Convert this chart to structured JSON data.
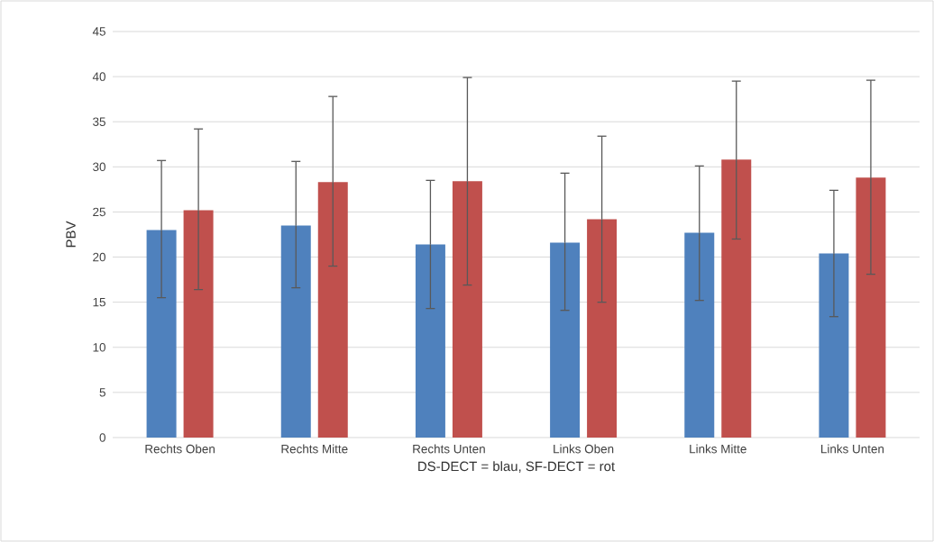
{
  "chart_data": {
    "type": "bar",
    "xlabel": "DS-DECT = blau, SF-DECT = rot",
    "ylabel": "PBV",
    "categories": [
      "Rechts Oben",
      "Rechts Mitte",
      "Rechts Unten",
      "Links Oben",
      "Links Mitte",
      "Links Unten"
    ],
    "series": [
      {
        "color": "#4f81bd",
        "values": [
          23.0,
          23.5,
          21.4,
          21.6,
          22.7,
          20.4
        ],
        "errors": [
          [
            15.5,
            30.7
          ],
          [
            16.6,
            30.6
          ],
          [
            14.3,
            28.5
          ],
          [
            14.1,
            29.3
          ],
          [
            15.2,
            30.1
          ],
          [
            13.4,
            27.4
          ]
        ]
      },
      {
        "color": "#c0504d",
        "values": [
          25.2,
          28.3,
          28.4,
          24.2,
          30.8,
          28.8
        ],
        "errors": [
          [
            16.4,
            34.2
          ],
          [
            19.0,
            37.8
          ],
          [
            16.9,
            39.9
          ],
          [
            15.0,
            33.4
          ],
          [
            22.0,
            39.5
          ],
          [
            18.1,
            39.6
          ]
        ]
      }
    ],
    "ylim": [
      0,
      45
    ],
    "yticks": [
      0,
      5,
      10,
      15,
      20,
      25,
      30,
      35,
      40,
      45
    ],
    "grid": "y"
  }
}
